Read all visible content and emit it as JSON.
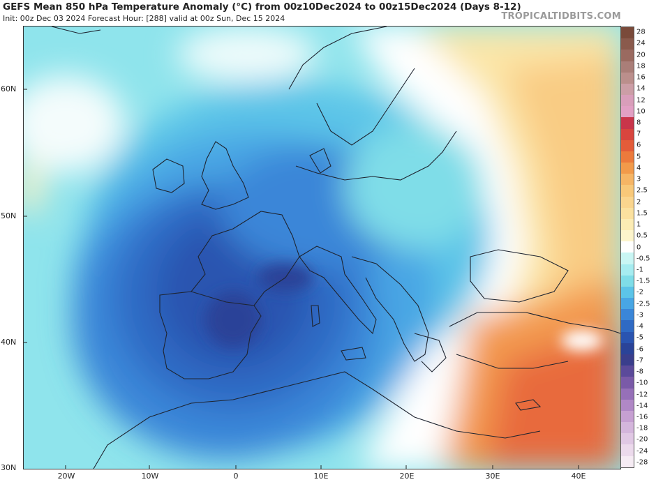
{
  "header": {
    "title": "GEFS Mean 850 hPa Temperature Anomaly (°C) from 00z10Dec2024 to 00z15Dec2024 (Days 8-12)",
    "subtitle": "Init: 00z Dec 03 2024   Forecast Hour: [288]   valid at 00z Sun, Dec 15 2024",
    "brand": "TROPICALTIDBITS.COM"
  },
  "axes": {
    "lat_labels": [
      "60N",
      "50N",
      "40N",
      "30N"
    ],
    "lon_labels": [
      "20W",
      "10W",
      "0",
      "10E",
      "20E",
      "30E",
      "40E"
    ]
  },
  "colorbar": {
    "labels": [
      "28",
      "24",
      "20",
      "18",
      "16",
      "14",
      "12",
      "10",
      "8",
      "7",
      "6",
      "5",
      "4",
      "3",
      "2.5",
      "2",
      "1.5",
      "1",
      "0.5",
      "0",
      "-0.5",
      "-1",
      "-1.5",
      "-2",
      "-2.5",
      "-3",
      "-4",
      "-5",
      "-6",
      "-7",
      "-8",
      "-10",
      "-12",
      "-14",
      "-16",
      "-18",
      "-20",
      "-24",
      "-28"
    ],
    "colors": [
      "#7a4a3a",
      "#8a5a4c",
      "#9a6a60",
      "#aa7e78",
      "#bb8f8c",
      "#cc9ea6",
      "#d99eba",
      "#e2a0c4",
      "#c9354a",
      "#d8453e",
      "#e35c39",
      "#ec7a3c",
      "#f29a4a",
      "#f6b565",
      "#f8c879",
      "#fad58e",
      "#fbe19f",
      "#fcecb4",
      "#fdf5cc",
      "#ffffff",
      "#c9f6f4",
      "#a6ecf0",
      "#7fdde8",
      "#5cc4e8",
      "#48a6e4",
      "#3a86d8",
      "#2f6ac4",
      "#2a54b0",
      "#2a4398",
      "#3a3e8c",
      "#5b4a9a",
      "#7a5aa8",
      "#9670b8",
      "#b088c6",
      "#c6a0d2",
      "#d4b6dc",
      "#e0c8e4",
      "#ecdaec",
      "#f6ecf4"
    ]
  }
}
